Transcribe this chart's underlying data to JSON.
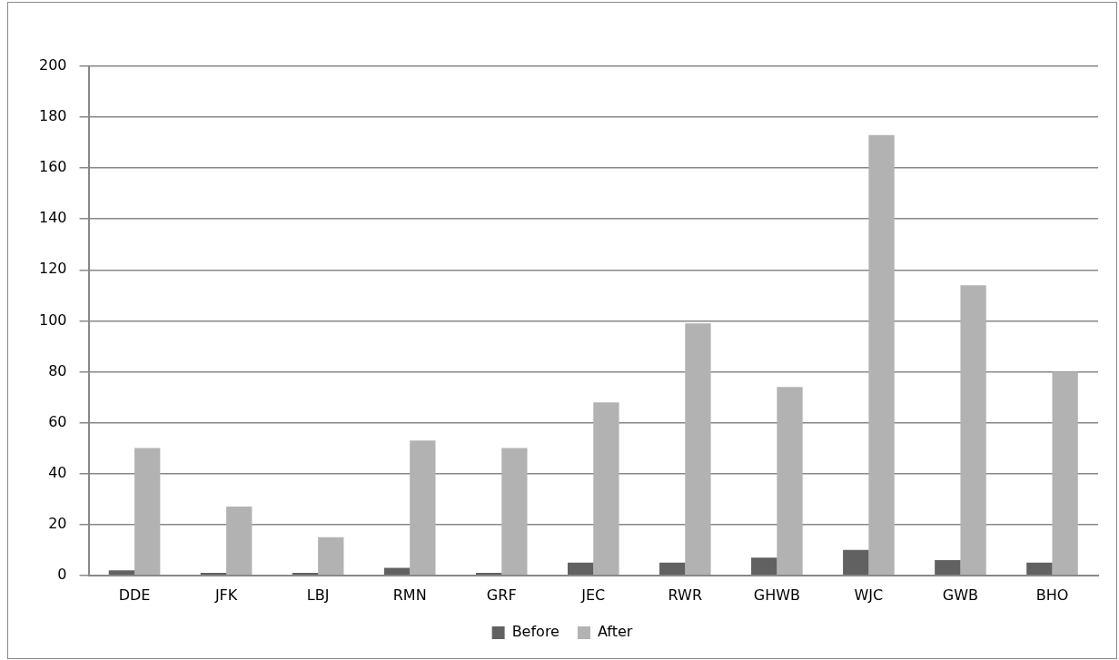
{
  "chart_data": {
    "type": "bar",
    "categories": [
      "DDE",
      "JFK",
      "LBJ",
      "RMN",
      "GRF",
      "JEC",
      "RWR",
      "GHWB",
      "WJC",
      "GWB",
      "BHO"
    ],
    "series": [
      {
        "name": "Before",
        "color": "#616161",
        "values": [
          2,
          1,
          1,
          3,
          1,
          5,
          5,
          7,
          10,
          6,
          5
        ]
      },
      {
        "name": "After",
        "color": "#b2b2b2",
        "values": [
          50,
          27,
          15,
          53,
          50,
          68,
          99,
          74,
          173,
          114,
          80
        ]
      }
    ],
    "ylim": [
      0,
      200
    ],
    "yticks": [
      0,
      20,
      40,
      60,
      80,
      100,
      120,
      140,
      160,
      180,
      200
    ],
    "grid": "y",
    "legend": "bottom"
  }
}
